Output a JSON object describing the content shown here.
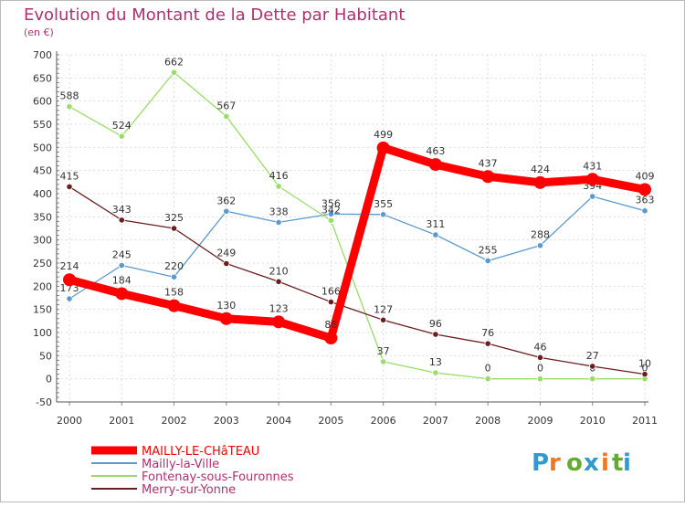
{
  "chart_data": {
    "type": "line",
    "title": "Evolution du Montant de la Dette par Habitant",
    "subtitle": "(en €)",
    "x": [
      "2000",
      "2001",
      "2002",
      "2003",
      "2004",
      "2005",
      "2006",
      "2007",
      "2008",
      "2009",
      "2010",
      "2011"
    ],
    "ylim": [
      -50,
      700
    ],
    "yticks": [
      -50,
      0,
      50,
      100,
      150,
      200,
      250,
      300,
      350,
      400,
      450,
      500,
      550,
      600,
      650,
      700
    ],
    "grid": true,
    "legend_position": "bottom-left",
    "series": [
      {
        "name": "MAILLY-LE-CHâTEAU",
        "color": "#ff0000",
        "emphasis": true,
        "values": [
          214,
          184,
          158,
          130,
          123,
          88,
          499,
          463,
          437,
          424,
          431,
          409
        ]
      },
      {
        "name": "Mailly-la-Ville",
        "color": "#5a9acf",
        "emphasis": false,
        "values": [
          173,
          245,
          220,
          362,
          338,
          356,
          355,
          311,
          255,
          288,
          394,
          363
        ]
      },
      {
        "name": "Fontenay-sous-Fouronnes",
        "color": "#99dd66",
        "emphasis": false,
        "values": [
          588,
          524,
          662,
          567,
          416,
          342,
          37,
          13,
          0,
          0,
          0,
          0
        ]
      },
      {
        "name": "Merry-sur-Yonne",
        "color": "#6b1e1e",
        "emphasis": false,
        "values": [
          415,
          343,
          325,
          249,
          210,
          166,
          127,
          96,
          76,
          46,
          27,
          10
        ]
      }
    ]
  },
  "logo": {
    "text": "Proxiti"
  }
}
